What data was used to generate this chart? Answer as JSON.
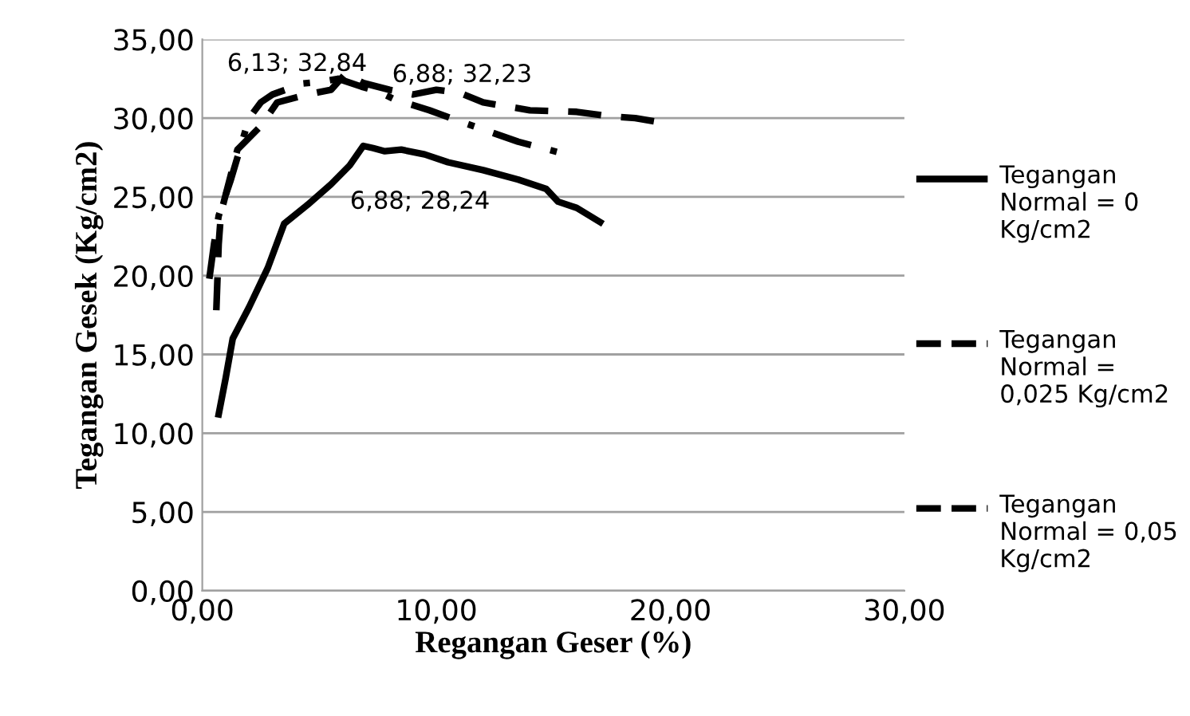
{
  "chart_data": {
    "type": "line",
    "xlabel": "Regangan Geser (%)",
    "ylabel": "Tegangan Gesek (Kg/cm2)",
    "xlim": [
      0,
      30
    ],
    "xticks": [
      {
        "value": 0,
        "label": "0,00"
      },
      {
        "value": 10,
        "label": "10,00"
      },
      {
        "value": 20,
        "label": "20,00"
      },
      {
        "value": 30,
        "label": "30,00"
      }
    ],
    "ylim": [
      0,
      35
    ],
    "yticks": [
      {
        "value": 0,
        "label": "0,00"
      },
      {
        "value": 5,
        "label": "5,00"
      },
      {
        "value": 10,
        "label": "10,00"
      },
      {
        "value": 15,
        "label": "15,00"
      },
      {
        "value": 20,
        "label": "20,00"
      },
      {
        "value": 25,
        "label": "25,00"
      },
      {
        "value": 30,
        "label": "30,00"
      },
      {
        "value": 35,
        "label": "35,00"
      }
    ],
    "grid": "y",
    "legend": "right",
    "marker": "none",
    "series": [
      {
        "name": "Tegangan Normal = 0 Kg/cm2",
        "color": "#000000",
        "line_style": "solid",
        "x": [
          0.7,
          1.0,
          1.3,
          2.0,
          2.8,
          3.5,
          4.5,
          5.5,
          6.3,
          6.88,
          7.3,
          7.8,
          8.5,
          9.5,
          10.5,
          12.0,
          13.5,
          14.7,
          15.2,
          16.0,
          17.0
        ],
        "values": [
          11.2,
          13.5,
          16.0,
          18.0,
          20.5,
          23.3,
          24.5,
          25.8,
          27.0,
          28.24,
          28.1,
          27.9,
          28.0,
          27.7,
          27.2,
          26.7,
          26.1,
          25.5,
          24.7,
          24.3,
          23.4
        ]
      },
      {
        "name": "Tegangan Normal = 0,025 Kg/cm2",
        "color": "#000000",
        "line_style": "dashed",
        "x": [
          0.6,
          0.7,
          0.8,
          1.5,
          2.5,
          3.2,
          4.5,
          5.5,
          6.13,
          6.5,
          6.88,
          8.0,
          9.0,
          10.0,
          11.0,
          12.0,
          14.0,
          16.0,
          17.5,
          18.5,
          19.3
        ],
        "values": [
          17.8,
          22.0,
          24.0,
          28.0,
          29.5,
          31.0,
          31.5,
          31.8,
          32.84,
          32.5,
          32.23,
          31.8,
          31.5,
          31.8,
          31.6,
          31.0,
          30.5,
          30.4,
          30.1,
          30.0,
          29.8
        ]
      },
      {
        "name": "Tegangan Normal = 0,05 Kg/cm2",
        "color": "#000000",
        "line_style": "dashdot",
        "x": [
          0.3,
          0.5,
          0.7,
          1.2,
          1.6,
          2.0,
          2.5,
          3.0,
          4.3,
          5.0,
          5.8,
          6.8,
          7.5,
          8.2,
          9.7,
          11.0,
          13.5,
          15.3
        ],
        "values": [
          19.8,
          22.0,
          23.8,
          26.0,
          28.0,
          30.0,
          31.0,
          31.5,
          32.2,
          32.3,
          32.5,
          32.0,
          31.7,
          31.2,
          30.5,
          29.8,
          28.5,
          27.8
        ]
      }
    ],
    "annotations": [
      "6,13; 32,84",
      "6,88; 32,23",
      "6,88; 28,24"
    ]
  }
}
